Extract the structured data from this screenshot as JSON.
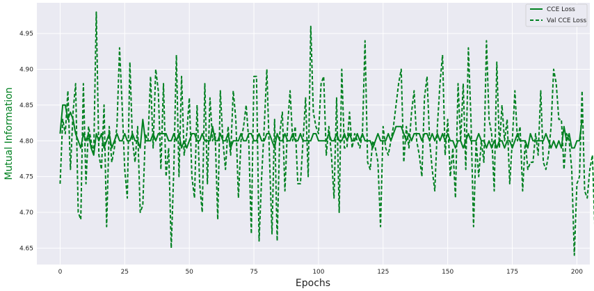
{
  "chart_data": {
    "type": "line",
    "title": "",
    "xlabel": "Epochs",
    "ylabel": "Mutual Information",
    "xlim": [
      -9,
      205
    ],
    "ylim": [
      4.627,
      4.993
    ],
    "xticks": [
      0,
      25,
      50,
      75,
      100,
      125,
      150,
      175,
      200
    ],
    "yticks": [
      4.65,
      4.7,
      4.75,
      4.8,
      4.85,
      4.9,
      4.95
    ],
    "xtick_labels": [
      "0",
      "25",
      "50",
      "75",
      "100",
      "125",
      "150",
      "175",
      "200"
    ],
    "ytick_labels": [
      "4.65",
      "4.70",
      "4.75",
      "4.80",
      "4.85",
      "4.90",
      "4.95"
    ],
    "grid": true,
    "legend_position": "top-right",
    "colors": {
      "background": "#eaeaf2",
      "grid": "#ffffff",
      "line": "#008020",
      "ylabel": "#008020",
      "xlabel": "#222222"
    },
    "series": [
      {
        "name": "CCE Loss",
        "style": "solid",
        "values": [
          4.81,
          4.85,
          4.85,
          4.83,
          4.84,
          4.83,
          4.81,
          4.8,
          4.79,
          4.81,
          4.8,
          4.81,
          4.79,
          4.78,
          4.81,
          4.8,
          4.81,
          4.79,
          4.8,
          4.81,
          4.79,
          4.8,
          4.81,
          4.8,
          4.8,
          4.81,
          4.8,
          4.8,
          4.81,
          4.8,
          4.8,
          4.79,
          4.83,
          4.8,
          4.8,
          4.8,
          4.81,
          4.8,
          4.81,
          4.81,
          4.81,
          4.81,
          4.8,
          4.8,
          4.81,
          4.8,
          4.81,
          4.79,
          4.8,
          4.79,
          4.8,
          4.81,
          4.81,
          4.8,
          4.8,
          4.81,
          4.8,
          4.8,
          4.8,
          4.82,
          4.8,
          4.8,
          4.81,
          4.8,
          4.8,
          4.81,
          4.79,
          4.8,
          4.8,
          4.8,
          4.81,
          4.8,
          4.8,
          4.81,
          4.81,
          4.8,
          4.8,
          4.81,
          4.8,
          4.8,
          4.81,
          4.81,
          4.8,
          4.79,
          4.81,
          4.8,
          4.8,
          4.81,
          4.8,
          4.8,
          4.81,
          4.8,
          4.8,
          4.81,
          4.8,
          4.8,
          4.8,
          4.8,
          4.81,
          4.81,
          4.8,
          4.8,
          4.8,
          4.8,
          4.81,
          4.8,
          4.8,
          4.81,
          4.8,
          4.8,
          4.81,
          4.8,
          4.81,
          4.8,
          4.8,
          4.81,
          4.8,
          4.81,
          4.8,
          4.8,
          4.8,
          4.79,
          4.8,
          4.81,
          4.8,
          4.8,
          4.8,
          4.81,
          4.8,
          4.81,
          4.82,
          4.82,
          4.82,
          4.81,
          4.8,
          4.81,
          4.8,
          4.81,
          4.81,
          4.81,
          4.8,
          4.81,
          4.81,
          4.8,
          4.81,
          4.8,
          4.81,
          4.8,
          4.81,
          4.8,
          4.81,
          4.8,
          4.8,
          4.79,
          4.8,
          4.8,
          4.79,
          4.8,
          4.81,
          4.8,
          4.8,
          4.8,
          4.81,
          4.8,
          4.8,
          4.79,
          4.8,
          4.79,
          4.8,
          4.79,
          4.8,
          4.8,
          4.79,
          4.8,
          4.8,
          4.79,
          4.8,
          4.81,
          4.8,
          4.8,
          4.8,
          4.79,
          4.81,
          4.8,
          4.8,
          4.8,
          4.8,
          4.8,
          4.81,
          4.8,
          4.79,
          4.8,
          4.79,
          4.8,
          4.79,
          4.82,
          4.8,
          4.81,
          4.79,
          4.79,
          4.8,
          4.8,
          4.83
        ]
      },
      {
        "name": "Val CCE Loss",
        "style": "dashed",
        "values": [
          4.74,
          4.83,
          4.81,
          4.87,
          4.76,
          4.84,
          4.88,
          4.7,
          4.69,
          4.88,
          4.74,
          4.82,
          4.8,
          4.78,
          4.98,
          4.78,
          4.76,
          4.85,
          4.68,
          4.82,
          4.77,
          4.79,
          4.82,
          4.93,
          4.85,
          4.76,
          4.72,
          4.91,
          4.8,
          4.77,
          4.82,
          4.7,
          4.71,
          4.81,
          4.8,
          4.89,
          4.79,
          4.9,
          4.87,
          4.76,
          4.88,
          4.75,
          4.79,
          4.65,
          4.76,
          4.92,
          4.75,
          4.89,
          4.78,
          4.81,
          4.86,
          4.75,
          4.72,
          4.85,
          4.74,
          4.7,
          4.88,
          4.74,
          4.86,
          4.8,
          4.81,
          4.69,
          4.87,
          4.8,
          4.76,
          4.82,
          4.78,
          4.87,
          4.83,
          4.72,
          4.8,
          4.82,
          4.85,
          4.8,
          4.67,
          4.89,
          4.89,
          4.66,
          4.75,
          4.82,
          4.9,
          4.78,
          4.67,
          4.83,
          4.66,
          4.81,
          4.84,
          4.73,
          4.82,
          4.87,
          4.8,
          4.82,
          4.74,
          4.74,
          4.8,
          4.86,
          4.75,
          4.96,
          4.84,
          4.82,
          4.81,
          4.88,
          4.89,
          4.78,
          4.82,
          4.78,
          4.72,
          4.86,
          4.7,
          4.9,
          4.79,
          4.79,
          4.84,
          4.79,
          4.81,
          4.8,
          4.79,
          4.81,
          4.94,
          4.77,
          4.76,
          4.8,
          4.79,
          4.77,
          4.68,
          4.82,
          4.79,
          4.78,
          4.8,
          4.82,
          4.85,
          4.88,
          4.9,
          4.77,
          4.82,
          4.79,
          4.84,
          4.87,
          4.8,
          4.78,
          4.75,
          4.86,
          4.89,
          4.8,
          4.76,
          4.73,
          4.82,
          4.88,
          4.92,
          4.78,
          4.83,
          4.75,
          4.79,
          4.72,
          4.88,
          4.8,
          4.88,
          4.76,
          4.93,
          4.83,
          4.68,
          4.8,
          4.75,
          4.8,
          4.77,
          4.94,
          4.83,
          4.81,
          4.73,
          4.91,
          4.79,
          4.85,
          4.8,
          4.83,
          4.74,
          4.8,
          4.87,
          4.8,
          4.82,
          4.73,
          4.8,
          4.76,
          4.77,
          4.77,
          4.81,
          4.78,
          4.87,
          4.77,
          4.76,
          4.78,
          4.82,
          4.9,
          4.88,
          4.83,
          4.83,
          4.76,
          4.81,
          4.8,
          4.76,
          4.64,
          4.74,
          4.75,
          4.87,
          4.73,
          4.72,
          4.76,
          4.78,
          4.67
        ]
      }
    ]
  }
}
